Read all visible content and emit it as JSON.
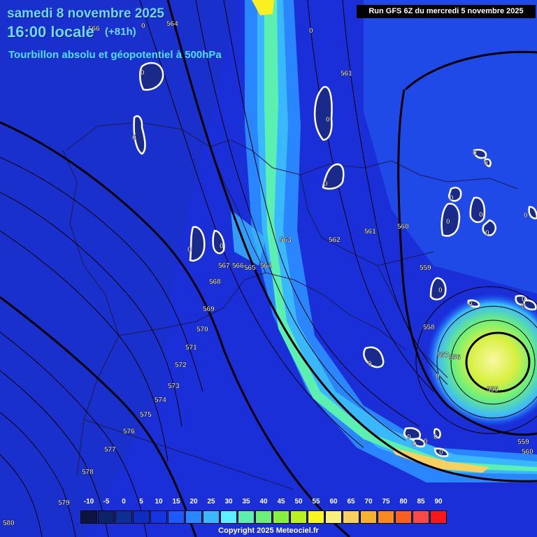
{
  "header": {
    "date": "samedi 8 novembre 2025",
    "time": "16:00 locale",
    "offset": "(+81h)",
    "parameter": "Tourbillon absolu et géopotentiel à 500hPa",
    "run": "Run GFS 6Z du mercredi 5 novembre 2025"
  },
  "copyright": "Copyright 2025 Meteociel.fr",
  "legend": {
    "ticks": [
      "-10",
      "-5",
      "0",
      "5",
      "10",
      "15",
      "20",
      "25",
      "30",
      "35",
      "40",
      "45",
      "50",
      "55",
      "60",
      "65",
      "70",
      "75",
      "80",
      "85",
      "90"
    ],
    "colors": [
      "#0a1540",
      "#0b2466",
      "#0c3090",
      "#0d2cc2",
      "#1236e0",
      "#1a5aff",
      "#2a86ff",
      "#3ab8ff",
      "#5cf0ff",
      "#5cf0b0",
      "#6cf07a",
      "#86f040",
      "#b8f020",
      "#f8f820",
      "#f8f07a",
      "#f8d060",
      "#f8b030",
      "#f88a20",
      "#f86020",
      "#f84848",
      "#f81818"
    ]
  },
  "contour_labels": [
    {
      "text": "566"
    },
    {
      "text": "564"
    },
    {
      "text": "561"
    },
    {
      "text": "563"
    },
    {
      "text": "562"
    },
    {
      "text": "561"
    },
    {
      "text": "560"
    },
    {
      "text": "567"
    },
    {
      "text": "566"
    },
    {
      "text": "565"
    },
    {
      "text": "564"
    },
    {
      "text": "568"
    },
    {
      "text": "569"
    },
    {
      "text": "570"
    },
    {
      "text": "571"
    },
    {
      "text": "572"
    },
    {
      "text": "573"
    },
    {
      "text": "574"
    },
    {
      "text": "575"
    },
    {
      "text": "576"
    },
    {
      "text": "577"
    },
    {
      "text": "578"
    },
    {
      "text": "579"
    },
    {
      "text": "580"
    },
    {
      "text": "559"
    },
    {
      "text": "558"
    },
    {
      "text": "557"
    },
    {
      "text": "556"
    },
    {
      "text": "555"
    },
    {
      "text": "559"
    },
    {
      "text": "560"
    }
  ],
  "zero_labels": [
    "0",
    "0",
    "0",
    "0",
    "0",
    "0",
    "0",
    "0",
    "0",
    "0",
    "0",
    "0",
    "0",
    "0",
    "0",
    "0",
    "0",
    "0",
    "0",
    "0",
    "0",
    "0",
    "0",
    "0",
    "0",
    "0"
  ],
  "colors": {
    "background": "#1a2fd8",
    "contour": "#000000",
    "border": "#1a1a40"
  }
}
